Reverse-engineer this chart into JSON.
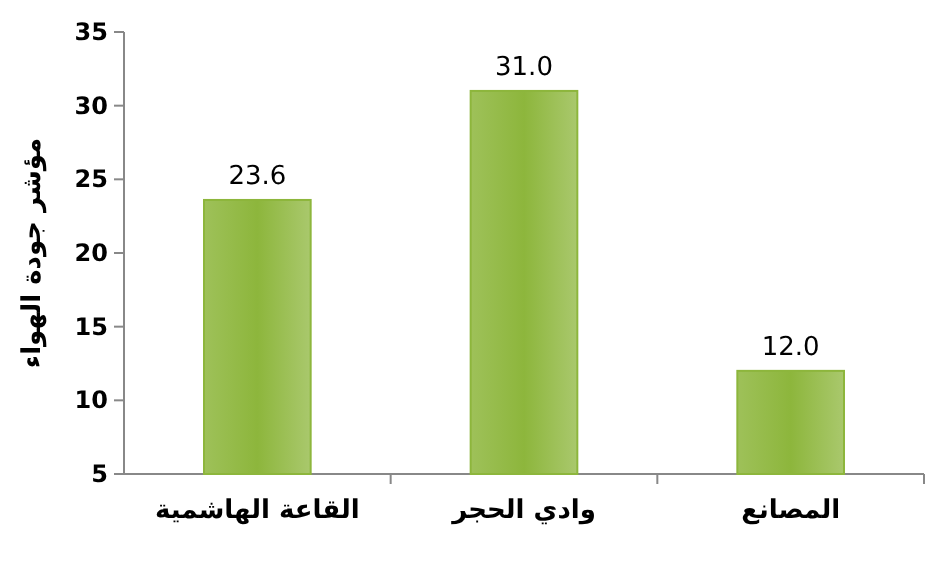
{
  "chart_data": {
    "type": "bar",
    "ylabel": "مؤشر جودة الهواء",
    "categories": [
      "القاعة الهاشمية",
      "وادي الحجر",
      "المصانع"
    ],
    "values": [
      23.6,
      31.0,
      12.0
    ],
    "value_labels": [
      "23.6",
      "31.0",
      "12.0"
    ],
    "color": "#8db63c",
    "ylim": [
      5,
      35
    ],
    "yticks": [
      5,
      10,
      15,
      20,
      25,
      30,
      35
    ],
    "grid": false
  }
}
